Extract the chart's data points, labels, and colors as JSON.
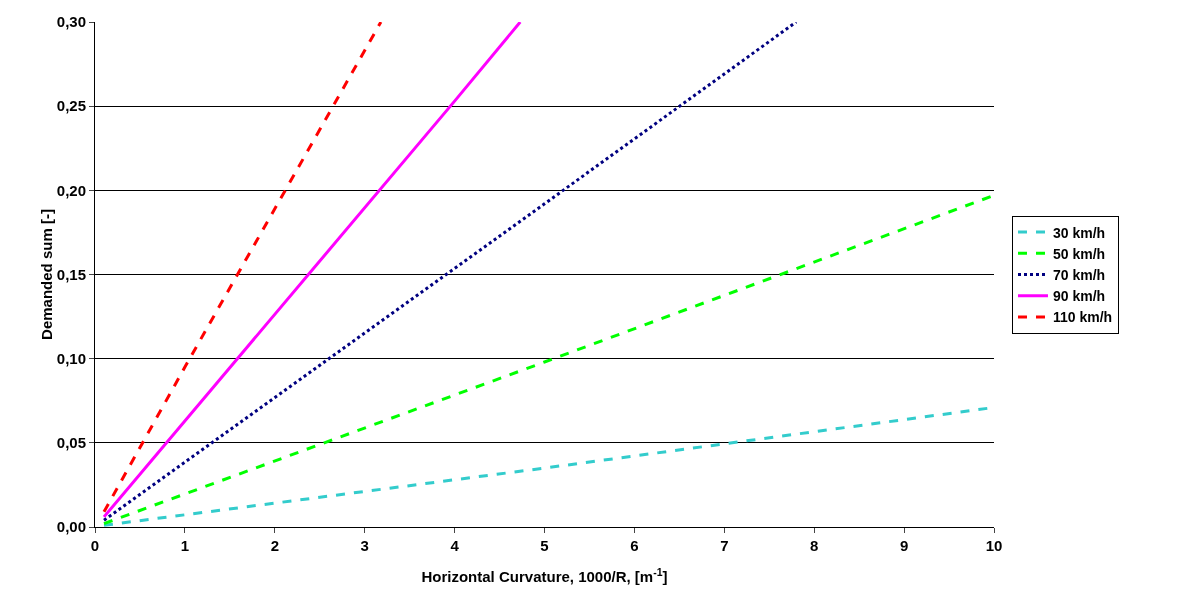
{
  "chart_data": {
    "type": "line",
    "xlabel": "Horizontal Curvature, 1000/R, [m$^{-1}$]",
    "ylabel": "Demanded sum [-]",
    "xlim": [
      0,
      10
    ],
    "xticks": [
      0,
      1,
      2,
      3,
      4,
      5,
      6,
      7,
      8,
      9,
      10
    ],
    "ylim": [
      0,
      0.3
    ],
    "yticks": [
      {
        "value": 0,
        "label": "0,00"
      },
      {
        "value": 0.05,
        "label": "0,05"
      },
      {
        "value": 0.1,
        "label": "0,10"
      },
      {
        "value": 0.15,
        "label": "0,15"
      },
      {
        "value": 0.2,
        "label": "0,20"
      },
      {
        "value": 0.25,
        "label": "0,25"
      },
      {
        "value": 0.3,
        "label": "0,30"
      }
    ],
    "grid": "y",
    "legend": "right",
    "marker": "none",
    "series": [
      {
        "name": "30 km/h",
        "color": "#33cccc",
        "line_style": "dashed",
        "x": [
          0.1,
          5,
          10
        ],
        "values": [
          0.001,
          0.035,
          0.071
        ]
      },
      {
        "name": "50 km/h",
        "color": "#00ff00",
        "line_style": "dashed",
        "x": [
          0.1,
          5,
          10
        ],
        "values": [
          0.002,
          0.098,
          0.197
        ]
      },
      {
        "name": "70 km/h",
        "color": "#000080",
        "line_style": "dotted",
        "x": [
          0.1,
          5,
          7.8
        ],
        "values": [
          0.004,
          0.192,
          0.3
        ]
      },
      {
        "name": "90 km/h",
        "color": "#ff00ff",
        "line_style": "solid",
        "x": [
          0.1,
          4,
          4.73
        ],
        "values": [
          0.006,
          0.253,
          0.3
        ]
      },
      {
        "name": "110 km/h",
        "color": "#ff0000",
        "line_style": "dashed",
        "x": [
          0.1,
          1,
          3.18
        ],
        "values": [
          0.009,
          0.095,
          0.3
        ]
      }
    ]
  }
}
